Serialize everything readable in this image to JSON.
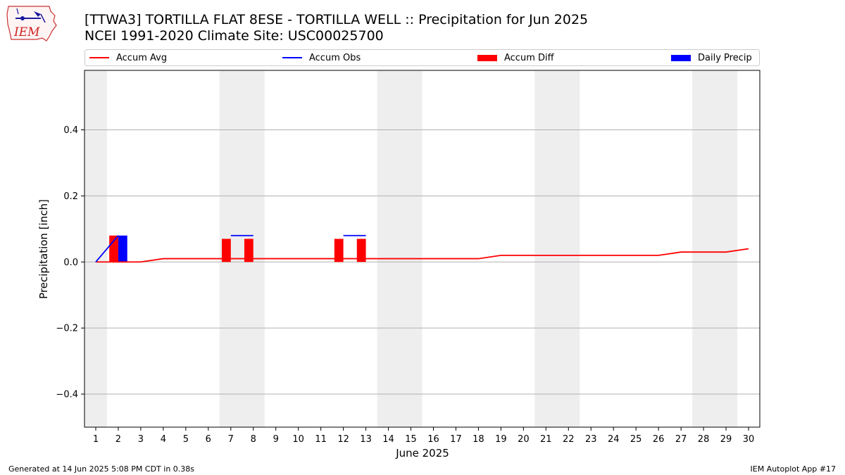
{
  "header": {
    "logo_text": "IEM",
    "title_line1": "[TTWA3] TORTILLA FLAT 8ESE - TORTILLA WELL :: Precipitation for Jun 2025",
    "title_line2": "NCEI 1991-2020 Climate Site: USC00025700"
  },
  "legend": {
    "placement": "top",
    "items": [
      {
        "label": "Accum Avg",
        "kind": "line",
        "color": "#ff0000"
      },
      {
        "label": "Accum Obs",
        "kind": "line",
        "color": "#0000ff"
      },
      {
        "label": "Accum Diff",
        "kind": "box",
        "color": "#ff0000"
      },
      {
        "label": "Daily Precip",
        "kind": "box",
        "color": "#0000ff"
      }
    ]
  },
  "footer": {
    "left": "Generated at 14 Jun 2025 5:08 PM CDT in 0.38s",
    "right": "IEM Autoplot App #17"
  },
  "chart_data": {
    "type": "bar",
    "title": "[TTWA3] TORTILLA FLAT 8ESE - TORTILLA WELL :: Precipitation for Jun 2025",
    "subtitle": "NCEI 1991-2020 Climate Site: USC00025700",
    "xlabel": "June 2025",
    "ylabel": "Precipitation [inch]",
    "x": [
      1,
      2,
      3,
      4,
      5,
      6,
      7,
      8,
      9,
      10,
      11,
      12,
      13,
      14,
      15,
      16,
      17,
      18,
      19,
      20,
      21,
      22,
      23,
      24,
      25,
      26,
      27,
      28,
      29,
      30
    ],
    "x_tick_labels": [
      "1",
      "2",
      "3",
      "4",
      "5",
      "6",
      "7",
      "8",
      "9",
      "10",
      "11",
      "12",
      "13",
      "14",
      "15",
      "16",
      "17",
      "18",
      "19",
      "20",
      "21",
      "22",
      "23",
      "24",
      "25",
      "26",
      "27",
      "28",
      "29",
      "30"
    ],
    "xlim": [
      0.5,
      30.5
    ],
    "ylim": [
      -0.5,
      0.58
    ],
    "y_ticks": [
      -0.4,
      -0.2,
      0.0,
      0.2,
      0.4
    ],
    "y_tick_labels": [
      "−0.4",
      "−0.2",
      "0.0",
      "0.2",
      "0.4"
    ],
    "grid": "horizontal",
    "weekend_shading": [
      [
        0.5,
        1.5
      ],
      [
        6.5,
        8.5
      ],
      [
        13.5,
        15.5
      ],
      [
        20.5,
        22.5
      ],
      [
        27.5,
        29.5
      ]
    ],
    "series": [
      {
        "name": "Accum Avg",
        "kind": "line",
        "color": "#ff0000",
        "x": [
          1,
          2,
          3,
          4,
          5,
          6,
          7,
          8,
          9,
          10,
          11,
          12,
          13,
          14,
          15,
          16,
          17,
          18,
          19,
          20,
          21,
          22,
          23,
          24,
          25,
          26,
          27,
          28,
          29,
          30
        ],
        "values": [
          0.0,
          0.0,
          0.0,
          0.01,
          0.01,
          0.01,
          0.01,
          0.01,
          0.01,
          0.01,
          0.01,
          0.01,
          0.01,
          0.01,
          0.01,
          0.01,
          0.01,
          0.01,
          0.02,
          0.02,
          0.02,
          0.02,
          0.02,
          0.02,
          0.02,
          0.02,
          0.03,
          0.03,
          0.03,
          0.04
        ]
      },
      {
        "name": "Accum Obs",
        "kind": "line",
        "color": "#0000ff",
        "segments": [
          {
            "x": [
              1,
              2
            ],
            "values": [
              0.0,
              0.08
            ]
          },
          {
            "x": [
              7,
              8
            ],
            "values": [
              0.08,
              0.08
            ]
          },
          {
            "x": [
              12,
              13
            ],
            "values": [
              0.08,
              0.08
            ]
          }
        ]
      },
      {
        "name": "Accum Diff",
        "kind": "bar",
        "color": "#ff0000",
        "x": [
          2,
          7,
          8,
          12,
          13
        ],
        "values": [
          0.08,
          0.07,
          0.07,
          0.07,
          0.07
        ]
      },
      {
        "name": "Daily Precip",
        "kind": "bar",
        "color": "#0000ff",
        "x": [
          2
        ],
        "values": [
          0.08
        ]
      }
    ]
  }
}
